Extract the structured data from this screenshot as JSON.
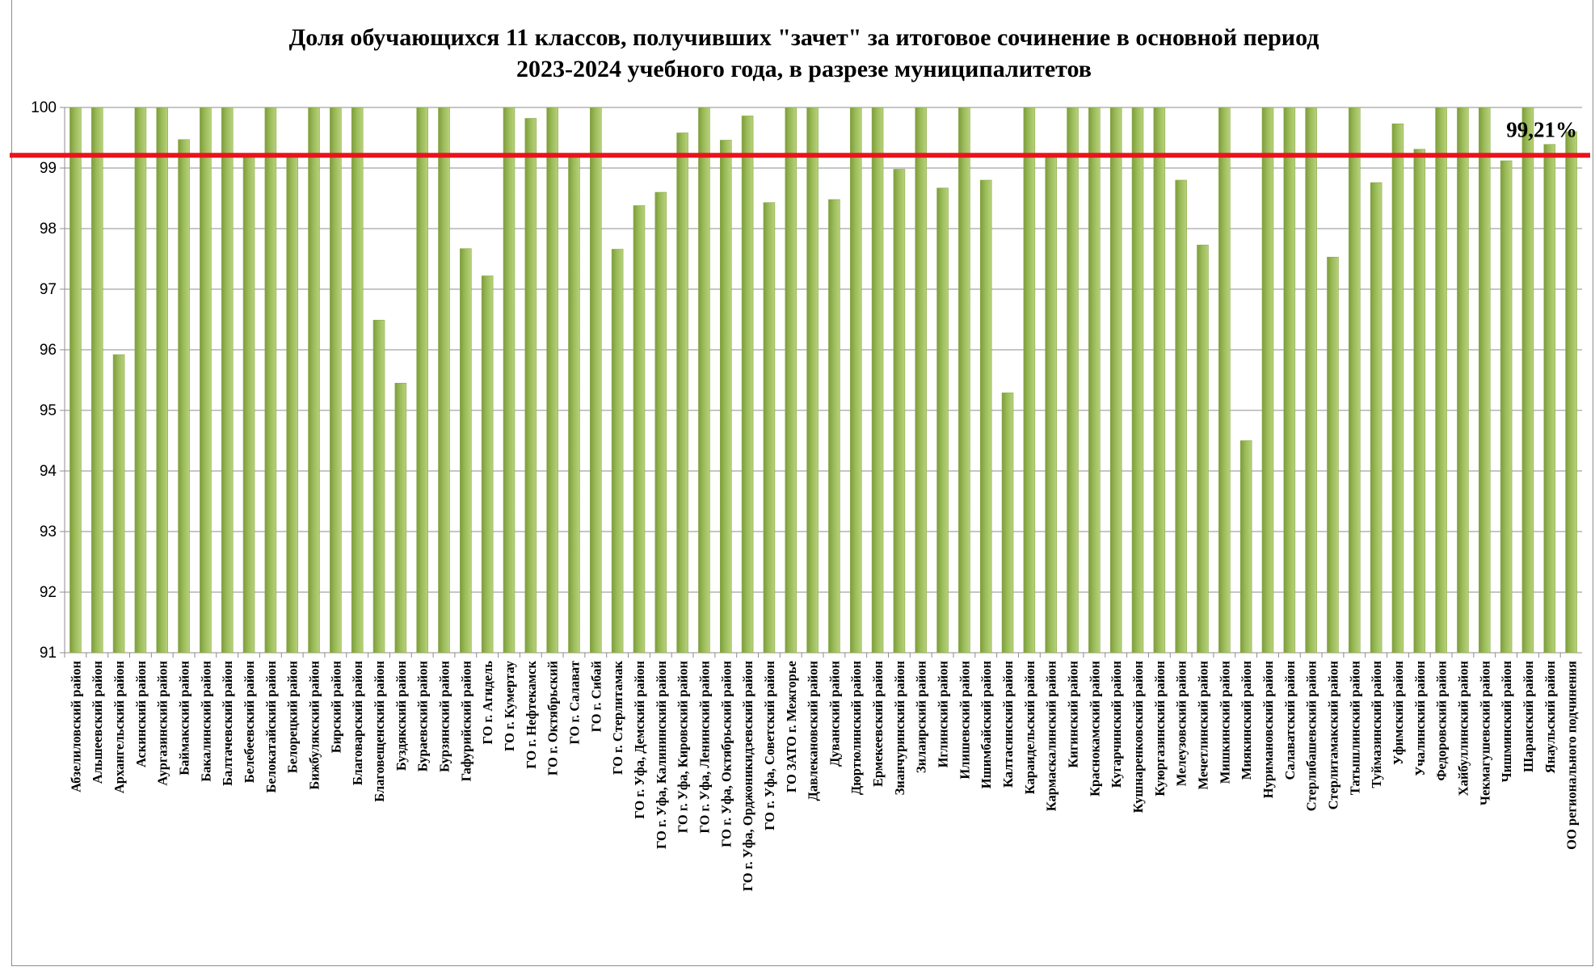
{
  "chart_data": {
    "type": "bar",
    "title": "Доля обучающихся 11 классов, получивших \"зачет\" за итоговое сочинение в основной период",
    "subtitle": "2023-2024 учебного года, в разрезе муниципалитетов",
    "xlabel": "",
    "ylabel": "",
    "ylim": [
      91,
      100
    ],
    "yticks": [
      91,
      92,
      93,
      94,
      95,
      96,
      97,
      98,
      99,
      100
    ],
    "grid": true,
    "legend": "none",
    "reference_line": {
      "value": 99.21,
      "label": "99,21%",
      "color": "#e8141c"
    },
    "bar_color": "#9bbb59",
    "categories": [
      "Абзелиловский район",
      "Альшеевский район",
      "Архангельский район",
      "Аскинский район",
      "Аургазинский район",
      "Баймакский район",
      "Бакалинский район",
      "Балтачевский район",
      "Белебеевский район",
      "Белокатайский район",
      "Белорецкий район",
      "Бижбулякский район",
      "Бирский район",
      "Благоварский район",
      "Благовещенский район",
      "Буздякский район",
      "Бураевский район",
      "Бурзянский район",
      "Гафурийский район",
      "ГО г. Агидель",
      "ГО г. Кумертау",
      "ГО г. Нефтекамск",
      "ГО г. Октябрьский",
      "ГО г. Салават",
      "ГО г. Сибай",
      "ГО г. Стерлитамак",
      "ГО г. Уфа, Демский район",
      "ГО г. Уфа, Калининский район",
      "ГО г. Уфа, Кировский район",
      "ГО г. Уфа, Ленинский район",
      "ГО г. Уфа, Октябрьский район",
      "ГО г. Уфа, Орджоникидзевский район",
      "ГО г. Уфа, Советский район",
      "ГО ЗАТО г. Межгорье",
      "Давлекановский район",
      "Дуванский район",
      "Дюртюлинский район",
      "Ермекеевский район",
      "Зианчуринский район",
      "Зилаирский район",
      "Иглинский район",
      "Илишевский район",
      "Ишимбайский район",
      "Калтасинский район",
      "Караидельский район",
      "Кармаскалинский район",
      "Кигинский район",
      "Краснокамский район",
      "Кугарчинский район",
      "Кушнаренковский район",
      "Куюргазинский район",
      "Мелеузовский район",
      "Мечетлинский район",
      "Мишкинский район",
      "Миякинский район",
      "Нуримановский район",
      "Салаватский район",
      "Стерлибашевский район",
      "Стерлитамакский район",
      "Татышлинский район",
      "Туймазинский район",
      "Уфимский район",
      "Учалинский район",
      "Федоровский район",
      "Хайбуллинский район",
      "Чекмагушевский район",
      "Чишминский район",
      "Шаранский район",
      "Янаульский район",
      "ОО регионального подчинения"
    ],
    "values": [
      100,
      100,
      95.92,
      100,
      100,
      99.47,
      100,
      100,
      99.18,
      100,
      99.18,
      100,
      100,
      100,
      96.49,
      95.45,
      100,
      100,
      97.67,
      97.22,
      100,
      99.82,
      100,
      99.18,
      100,
      97.66,
      98.38,
      98.6,
      99.58,
      100,
      99.46,
      99.86,
      98.43,
      100,
      100,
      98.48,
      100,
      100,
      98.98,
      100,
      98.67,
      100,
      98.8,
      95.29,
      100,
      99.18,
      100,
      100,
      100,
      100,
      100,
      98.8,
      97.73,
      100,
      94.5,
      100,
      100,
      100,
      97.53,
      100,
      98.76,
      99.73,
      99.31,
      100,
      100,
      100,
      99.12,
      100,
      99.39,
      99.6
    ]
  }
}
